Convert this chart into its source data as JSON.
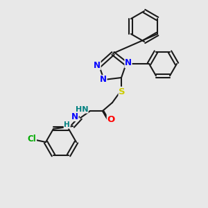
{
  "bg_color": "#e8e8e8",
  "bond_color": "#1a1a1a",
  "bond_lw": 1.5,
  "atom_colors": {
    "N": "#0000ff",
    "O": "#ff0000",
    "S": "#cccc00",
    "Cl": "#00aa00",
    "H": "#008080",
    "C": "#1a1a1a"
  },
  "font_size": 8.5
}
